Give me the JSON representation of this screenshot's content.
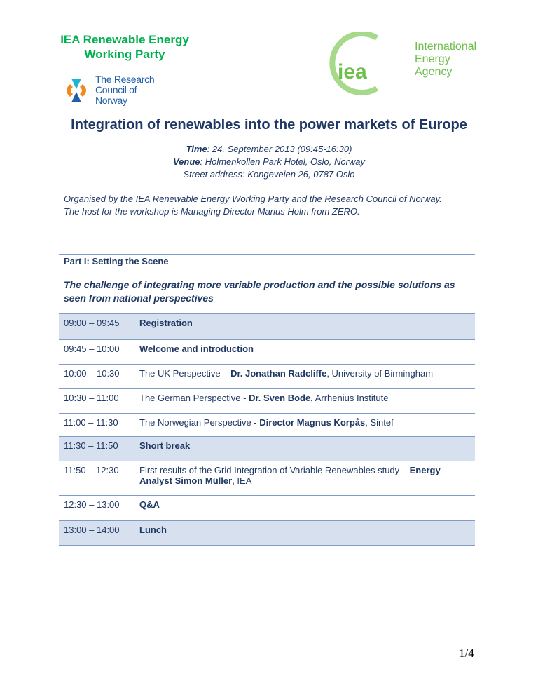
{
  "header": {
    "rewp_logo": "IEA Renewable Energy Working Party",
    "rcn_logo": "The Research Council of Norway",
    "iea_logo": "iea",
    "iea_name": "International Energy Agency"
  },
  "title": "Integration of renewables into the power markets of Europe",
  "info": {
    "time_label": "Time",
    "time_value": ": 24. September 2013 (09:45-16:30)",
    "venue_label": "Venue",
    "venue_value": ": Holmenkollen Park Hotel, Oslo, Norway",
    "street": "Street address: Kongeveien 26, 0787 Oslo"
  },
  "organised": [
    "Organised by the IEA Renewable Energy Working Party and the Research Council of Norway.",
    "The host for the workshop is Managing Director Marius Holm from ZERO."
  ],
  "part": "Part I: Setting the Scene",
  "challenge": "The challenge of integrating more variable production and the possible solutions as seen from national perspectives",
  "agenda": [
    {
      "time": "09:00 – 09:45",
      "pre": "",
      "bold": "Registration",
      "post": "",
      "shade": true,
      "h": 37
    },
    {
      "time": "09:45 – 10:00",
      "pre": "",
      "bold": "Welcome and introduction",
      "post": "",
      "shade": false,
      "h": 35
    },
    {
      "time": "10:00 – 10:30",
      "pre": "The UK Perspective – ",
      "bold": "Dr. Jonathan Radcliffe",
      "post": ", University of Birmingham",
      "shade": false,
      "h": 35
    },
    {
      "time": "10:30 – 11:00",
      "pre": "The German Perspective - ",
      "bold": "Dr. Sven Bode,",
      "post": " Arrhenius Institute",
      "shade": false,
      "h": 35
    },
    {
      "time": "11:00 – 11:30",
      "pre": "The Norwegian Perspective - ",
      "bold": "Director Magnus Korpås",
      "post": ", Sintef",
      "shade": false,
      "h": 33
    },
    {
      "time": "11:30 – 11:50",
      "pre": "",
      "bold": "Short break",
      "post": "",
      "shade": true,
      "h": 35
    },
    {
      "time": "11:50 – 12:30",
      "pre": "First results of the Grid Integration of Variable Renewables  study – ",
      "bold": "Energy Analyst Simon Müller",
      "post": ", IEA",
      "shade": false,
      "h": 49
    },
    {
      "time": "12:30 – 13:00",
      "pre": "",
      "bold": "Q&A",
      "post": "",
      "shade": false,
      "h": 36
    },
    {
      "time": "13:00 – 14:00",
      "pre": "",
      "bold": "Lunch",
      "post": "",
      "shade": true,
      "h": 35
    }
  ],
  "page_number": "1/4"
}
